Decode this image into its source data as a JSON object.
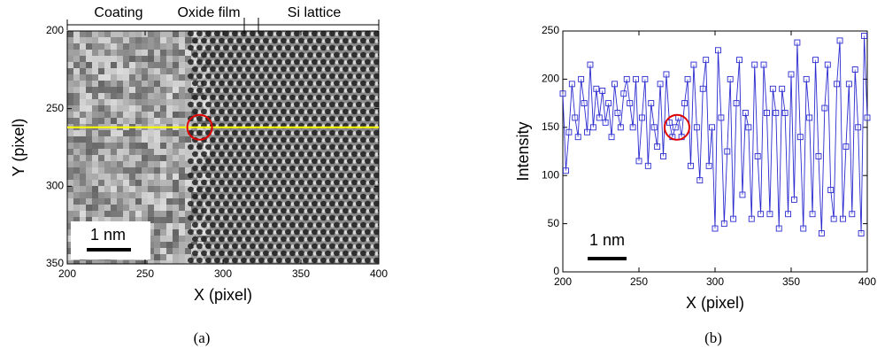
{
  "chart_data": [
    {
      "type": "image",
      "xlabel": "X (pixel)",
      "ylabel": "Y (pixel)",
      "xlim": [
        200,
        400
      ],
      "xticks": [
        200,
        250,
        300,
        350,
        400
      ],
      "ylim": [
        350,
        200
      ],
      "yticks": [
        200,
        250,
        300,
        350
      ],
      "annotations": [
        "Coating",
        "Oxide film",
        "Si lattice",
        "1 nm"
      ],
      "line_y": 262,
      "line_color": "#ffff00",
      "highlight": {
        "x": 285,
        "y": 262
      },
      "highlight_color": "#e00000",
      "caption": "(a)"
    },
    {
      "type": "line",
      "xlabel": "X (pixel)",
      "ylabel": "Intensity",
      "xlim": [
        200,
        400
      ],
      "xticks": [
        200,
        250,
        300,
        350,
        400
      ],
      "ylim": [
        0,
        250
      ],
      "yticks": [
        0,
        50,
        100,
        150,
        200,
        250
      ],
      "x": [
        200,
        202,
        204,
        206,
        208,
        210,
        212,
        214,
        216,
        218,
        220,
        222,
        224,
        226,
        228,
        230,
        232,
        234,
        236,
        238,
        240,
        242,
        244,
        246,
        248,
        250,
        252,
        254,
        256,
        258,
        260,
        262,
        264,
        266,
        268,
        270,
        272,
        274,
        276,
        278,
        280,
        282,
        284,
        286,
        288,
        290,
        292,
        294,
        296,
        298,
        300,
        302,
        304,
        306,
        308,
        310,
        312,
        314,
        316,
        318,
        320,
        322,
        324,
        326,
        328,
        330,
        332,
        334,
        336,
        338,
        340,
        342,
        344,
        346,
        348,
        350,
        352,
        354,
        356,
        358,
        360,
        362,
        364,
        366,
        368,
        370,
        372,
        374,
        376,
        378,
        380,
        382,
        384,
        386,
        388,
        390,
        392,
        394,
        396,
        398,
        400
      ],
      "series": [
        {
          "color": "#2b2bd0",
          "values": [
            185,
            105,
            145,
            195,
            160,
            140,
            200,
            175,
            145,
            215,
            150,
            190,
            160,
            188,
            155,
            175,
            140,
            195,
            165,
            150,
            185,
            200,
            175,
            150,
            200,
            115,
            160,
            200,
            110,
            175,
            150,
            130,
            195,
            120,
            205,
            155,
            140,
            150,
            160,
            140,
            175,
            200,
            110,
            215,
            150,
            95,
            190,
            220,
            110,
            150,
            45,
            230,
            160,
            50,
            125,
            200,
            55,
            175,
            220,
            80,
            165,
            150,
            55,
            215,
            120,
            60,
            215,
            165,
            60,
            190,
            165,
            45,
            190,
            165,
            60,
            205,
            75,
            238,
            140,
            45,
            200,
            160,
            60,
            220,
            120,
            40,
            170,
            215,
            85,
            55,
            195,
            240,
            55,
            130,
            195,
            60,
            210,
            150,
            40,
            245,
            160
          ]
        }
      ],
      "annotations": [
        "1 nm"
      ],
      "highlight": {
        "x": 275,
        "y": 150
      },
      "highlight_color": "#e00000",
      "caption": "(b)"
    }
  ]
}
